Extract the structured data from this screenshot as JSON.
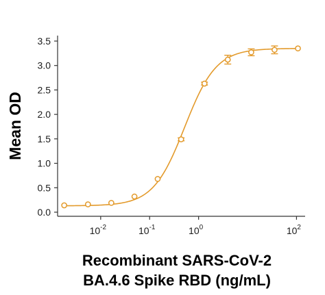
{
  "chart_data": {
    "type": "scatter",
    "title": "",
    "xlabel_line1": "Recombinant SARS-CoV-2",
    "xlabel_line2": "BA.4.6 Spike RBD (ng/mL)",
    "ylabel": "Mean OD",
    "x_scale": "log",
    "xlim": [
      0.0015,
      150
    ],
    "ylim": [
      0,
      3.5
    ],
    "yticks": [
      "0.0",
      "0.5",
      "1.0",
      "1.5",
      "2.0",
      "2.5",
      "3.0",
      "3.5"
    ],
    "xticks": [
      {
        "value": 0.01,
        "base": "10",
        "exp": "-2"
      },
      {
        "value": 0.1,
        "base": "10",
        "exp": "-1"
      },
      {
        "value": 1,
        "base": "10",
        "exp": "0"
      },
      {
        "value": 100,
        "base": "10",
        "exp": "2"
      }
    ],
    "grid": false,
    "color": "#E39A2B",
    "series": [
      {
        "x": [
          0.0018,
          0.0055,
          0.0165,
          0.049,
          0.146,
          0.44,
          1.32,
          3.95,
          11.9,
          35.6,
          107
        ],
        "y": [
          0.14,
          0.16,
          0.19,
          0.32,
          0.68,
          1.49,
          2.63,
          3.12,
          3.27,
          3.32,
          3.35
        ],
        "err": [
          0.01,
          0.01,
          0.01,
          0.02,
          0.02,
          0.03,
          0.03,
          0.09,
          0.07,
          0.08,
          0.02
        ]
      }
    ],
    "fit": {
      "type": "4PL",
      "bottom": 0.13,
      "top": 3.35,
      "ec50": 0.52,
      "hill": 1.35
    }
  }
}
